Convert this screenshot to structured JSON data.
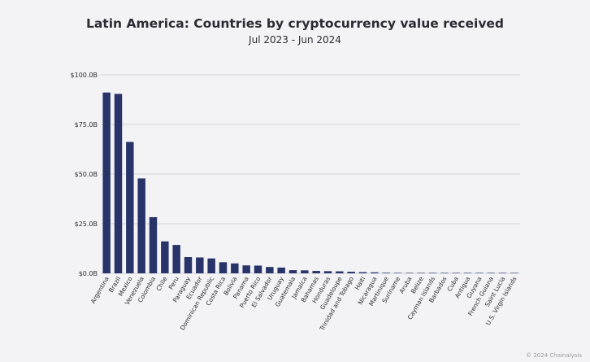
{
  "chart_data": {
    "type": "bar",
    "title": "Latin America: Countries by cryptocurrency value received",
    "subtitle": "Jul 2023 - Jun 2024",
    "xlabel": "",
    "ylabel": "",
    "ylim": [
      0,
      100
    ],
    "y_ticks": [
      0,
      25,
      50,
      75,
      100
    ],
    "y_tick_labels": [
      "$0.0B",
      "$25.0B",
      "$50.0B",
      "$75.0B",
      "$100.0B"
    ],
    "grid": true,
    "legend": "none",
    "bar_color": "#283469",
    "categories": [
      "Argentina",
      "Brazil",
      "Mexico",
      "Venezuela",
      "Colombia",
      "Chile",
      "Peru",
      "Paraguay",
      "Ecuador",
      "Dominican Republic",
      "Costa Rica",
      "Bolivia",
      "Panama",
      "Puerto Rico",
      "El Salvador",
      "Uruguay",
      "Guatemala",
      "Jamaica",
      "Bahamas",
      "Honduras",
      "Guadeloupe",
      "Trinidad and Tobago",
      "Haiti",
      "Nicaragua",
      "Martinique",
      "Suriname",
      "Aruba",
      "Belize",
      "Cayman Islands",
      "Barbados",
      "Cuba",
      "Antigua",
      "Guyana",
      "French Guiana",
      "Saint Lucia",
      "U.S. Virgin Islands"
    ],
    "values": [
      91.1,
      90.4,
      66.2,
      47.8,
      28.3,
      16.1,
      14.3,
      8.2,
      8.0,
      7.5,
      5.6,
      5.0,
      4.0,
      3.9,
      3.2,
      2.9,
      1.6,
      1.5,
      1.2,
      1.1,
      1.0,
      0.8,
      0.6,
      0.5,
      0.3,
      0.15,
      0.12,
      0.1,
      0.08,
      0.07,
      0.06,
      0.05,
      0.05,
      0.04,
      0.03,
      0.02
    ]
  },
  "credit": "© 2024 Chainalysis"
}
